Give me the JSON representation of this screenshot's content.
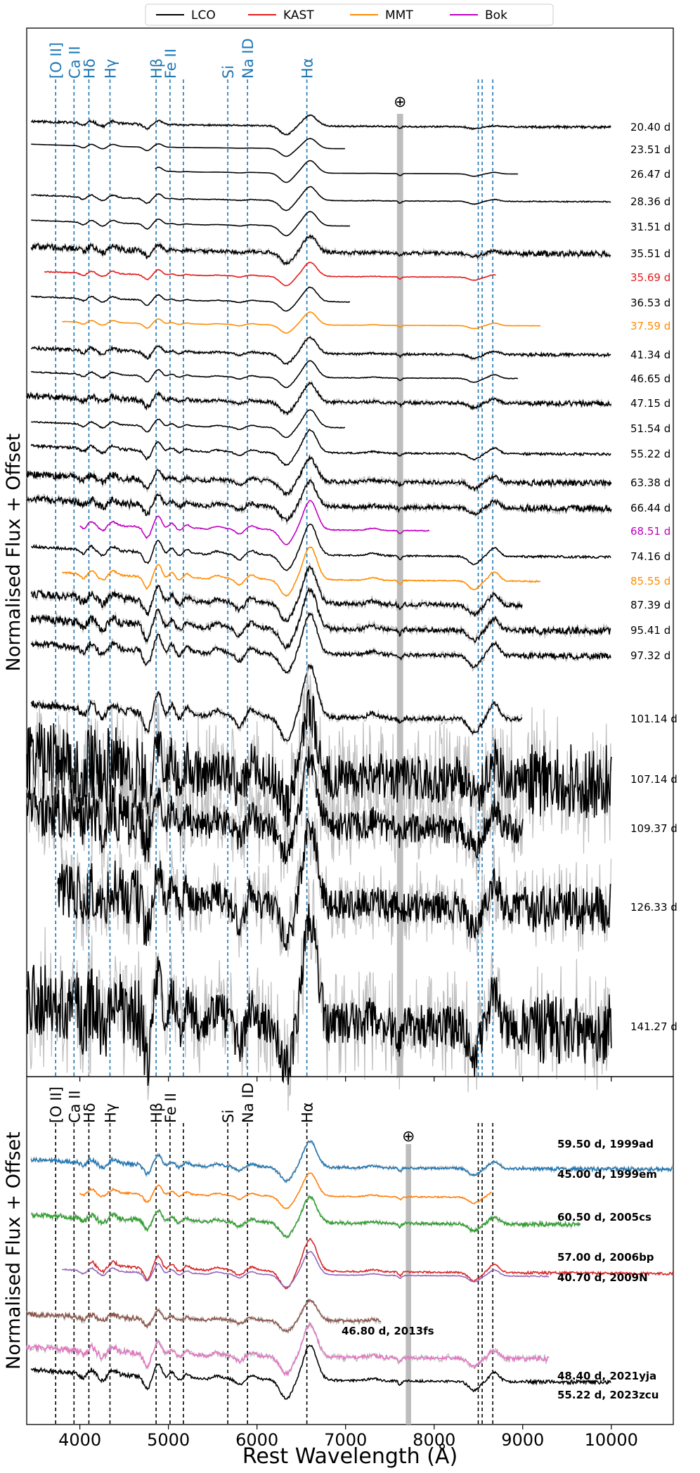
{
  "legend": [
    {
      "label": "LCO",
      "color": "#000000"
    },
    {
      "label": "KAST",
      "color": "#e41a1c"
    },
    {
      "label": "MMT",
      "color": "#ff8c00"
    },
    {
      "label": "Bok",
      "color": "#c000c0"
    }
  ],
  "chart_data": [
    {
      "type": "line",
      "panel": "top",
      "ylabel": "Normalised Flux + Offset",
      "xlim": [
        3400,
        10700
      ],
      "xticks": [
        4000,
        5000,
        6000,
        7000,
        8000,
        9000,
        10000
      ],
      "telluric_symbol": "⊕",
      "telluric_band": [
        7580,
        7650
      ],
      "lines": [
        {
          "label": "[O II]",
          "wavelength": 3727
        },
        {
          "label": "Ca II",
          "wavelength": 3934
        },
        {
          "label": "Hδ",
          "wavelength": 4102
        },
        {
          "label": "Hγ",
          "wavelength": 4340
        },
        {
          "label": "Hβ",
          "wavelength": 4861
        },
        {
          "label": "Fe II",
          "wavelength": 5018
        },
        {
          "label": "Fe II",
          "wavelength": 5169
        },
        {
          "label": "Si",
          "wavelength": 5670
        },
        {
          "label": "Na ID",
          "wavelength": 5893
        },
        {
          "label": "Hα",
          "wavelength": 6563
        },
        {
          "label": "Ca II",
          "wavelength": 8498
        },
        {
          "label": "Ca II",
          "wavelength": 8542
        },
        {
          "label": "Ca II",
          "wavelength": 8662
        }
      ],
      "series": [
        {
          "name": "20.40 d",
          "source": "LCO",
          "color": "#000000",
          "xrange": [
            3450,
            10000
          ],
          "noise": 0.25
        },
        {
          "name": "23.51 d",
          "source": "LCO",
          "color": "#000000",
          "xrange": [
            3450,
            7000
          ],
          "noise": 0.0
        },
        {
          "name": "26.47 d",
          "source": "LCO",
          "color": "#000000",
          "xrange": [
            4850,
            8950
          ],
          "noise": 0.0
        },
        {
          "name": "28.36 d",
          "source": "LCO",
          "color": "#000000",
          "xrange": [
            3450,
            10000
          ],
          "noise": 0.1
        },
        {
          "name": "31.51 d",
          "source": "LCO",
          "color": "#000000",
          "xrange": [
            3450,
            7050
          ],
          "noise": 0.05
        },
        {
          "name": "35.51 d",
          "source": "LCO",
          "color": "#000000",
          "xrange": [
            3450,
            10000
          ],
          "noise": 0.5
        },
        {
          "name": "35.69 d",
          "source": "KAST",
          "color": "#e41a1c",
          "xrange": [
            3600,
            8700
          ],
          "noise": 0.1
        },
        {
          "name": "36.53 d",
          "source": "LCO",
          "color": "#000000",
          "xrange": [
            3450,
            7050
          ],
          "noise": 0.1
        },
        {
          "name": "37.59 d",
          "source": "MMT",
          "color": "#ff8c00",
          "xrange": [
            3800,
            9200
          ],
          "noise": 0.05
        },
        {
          "name": "41.34 d",
          "source": "LCO",
          "color": "#000000",
          "xrange": [
            3450,
            10000
          ],
          "noise": 0.3
        },
        {
          "name": "46.65 d",
          "source": "LCO",
          "color": "#000000",
          "xrange": [
            3450,
            8950
          ],
          "noise": 0.1
        },
        {
          "name": "47.15 d",
          "source": "LCO",
          "color": "#000000",
          "xrange": [
            3400,
            10000
          ],
          "noise": 0.45
        },
        {
          "name": "51.54 d",
          "source": "LCO",
          "color": "#000000",
          "xrange": [
            3450,
            7000
          ],
          "noise": 0.1
        },
        {
          "name": "55.22 d",
          "source": "LCO",
          "color": "#000000",
          "xrange": [
            3450,
            10000
          ],
          "noise": 0.2
        },
        {
          "name": "63.38 d",
          "source": "LCO",
          "color": "#000000",
          "xrange": [
            3400,
            10000
          ],
          "noise": 0.5
        },
        {
          "name": "66.44 d",
          "source": "LCO",
          "color": "#000000",
          "xrange": [
            3400,
            10000
          ],
          "noise": 0.5
        },
        {
          "name": "68.51 d",
          "source": "Bok",
          "color": "#c000c0",
          "xrange": [
            4000,
            7950
          ],
          "noise": 0.1
        },
        {
          "name": "74.16 d",
          "source": "LCO",
          "color": "#000000",
          "xrange": [
            3450,
            10000
          ],
          "noise": 0.15
        },
        {
          "name": "85.55 d",
          "source": "MMT",
          "color": "#ff8c00",
          "xrange": [
            3800,
            9200
          ],
          "noise": 0.1
        },
        {
          "name": "87.39 d",
          "source": "LCO",
          "color": "#000000",
          "xrange": [
            3450,
            9000
          ],
          "noise": 0.4
        },
        {
          "name": "95.41 d",
          "source": "LCO",
          "color": "#000000",
          "xrange": [
            3450,
            10000
          ],
          "noise": 0.4
        },
        {
          "name": "97.32 d",
          "source": "LCO",
          "color": "#000000",
          "xrange": [
            3450,
            10000
          ],
          "noise": 0.3
        },
        {
          "name": "101.14 d",
          "source": "LCO",
          "color": "#000000",
          "xrange": [
            3450,
            9000
          ],
          "noise": 0.3
        },
        {
          "name": "107.14 d",
          "source": "LCO",
          "color": "#000000",
          "xrange": [
            3400,
            10000
          ],
          "noise": 2.5
        },
        {
          "name": "109.37 d",
          "source": "LCO",
          "color": "#000000",
          "xrange": [
            3400,
            9000
          ],
          "noise": 1.6
        },
        {
          "name": "126.33 d",
          "source": "LCO",
          "color": "#000000",
          "xrange": [
            3750,
            10000
          ],
          "noise": 1.5
        },
        {
          "name": "141.27 d",
          "source": "LCO",
          "color": "#000000",
          "xrange": [
            3400,
            10000
          ],
          "noise": 1.6
        }
      ]
    },
    {
      "type": "line",
      "panel": "bottom",
      "xlabel": "Rest Wavelength (Å)",
      "ylabel": "Normalised Flux + Offset",
      "xlim": [
        3400,
        10700
      ],
      "xticks": [
        4000,
        5000,
        6000,
        7000,
        8000,
        9000,
        10000
      ],
      "telluric_symbol": "⊕",
      "telluric_band": [
        7680,
        7740
      ],
      "lines": [
        {
          "label": "[O II]",
          "wavelength": 3727
        },
        {
          "label": "Ca II",
          "wavelength": 3934
        },
        {
          "label": "Hδ",
          "wavelength": 4102
        },
        {
          "label": "Hγ",
          "wavelength": 4340
        },
        {
          "label": "Hβ",
          "wavelength": 4861
        },
        {
          "label": "Fe II",
          "wavelength": 5018
        },
        {
          "label": "Fe II",
          "wavelength": 5169
        },
        {
          "label": "Si",
          "wavelength": 5670
        },
        {
          "label": "Na ID",
          "wavelength": 5893
        },
        {
          "label": "Hα",
          "wavelength": 6563
        },
        {
          "label": "Ca II",
          "wavelength": 8498
        },
        {
          "label": "Ca II",
          "wavelength": 8542
        },
        {
          "label": "Ca II",
          "wavelength": 8662
        }
      ],
      "series": [
        {
          "name": "59.50 d, 1999ad",
          "color": "#1f77b4",
          "xrange": [
            3450,
            10700
          ],
          "noise": 0.25
        },
        {
          "name": "45.00 d, 1999em",
          "color": "#ff7f0e",
          "xrange": [
            4000,
            8650
          ],
          "noise": 0.15
        },
        {
          "name": "60.50 d, 2005cs",
          "color": "#2ca02c",
          "xrange": [
            3450,
            9650
          ],
          "noise": 0.3
        },
        {
          "name": "57.00 d, 2006bp",
          "color": "#d62728",
          "xrange": [
            4100,
            10700
          ],
          "noise": 0.15
        },
        {
          "name": "40.70 d, 2009N",
          "color": "#9467bd",
          "xrange": [
            3800,
            9300
          ],
          "noise": 0.1
        },
        {
          "name": "46.80 d, 2013fs",
          "color": "#8c564b",
          "xrange": [
            3400,
            7400
          ],
          "noise": 0.4
        },
        {
          "name": "48.40 d, 2021yja",
          "color": "#e377c2",
          "xrange": [
            3400,
            9300
          ],
          "noise": 0.3
        },
        {
          "name": "55.22 d, 2023zcu",
          "color": "#000000",
          "xrange": [
            3450,
            10000
          ],
          "noise": 0.2
        }
      ]
    }
  ]
}
